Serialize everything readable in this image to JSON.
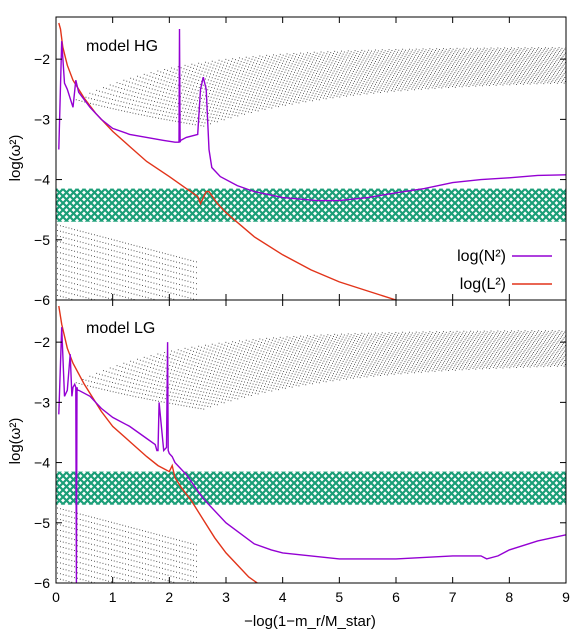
{
  "colors": {
    "n2": "#9400d3",
    "l2": "#e2341a",
    "band": "#1a9e77",
    "dots": "#4a4a4a"
  },
  "chart_data": [
    {
      "type": "line",
      "panel_label": "model HG",
      "xlim": [
        0,
        9
      ],
      "ylim": [
        -6,
        -1.3
      ],
      "y_ticks": [
        -6,
        -5,
        -4,
        -3,
        -2
      ],
      "xlabel": "",
      "ylabel": "log(ω²)",
      "legend_position": "right, middle",
      "band": [
        -4.7,
        -4.15
      ],
      "series": [
        {
          "name": "log(N²)",
          "x": [
            0.05,
            0.1,
            0.15,
            0.2,
            0.3,
            0.35,
            0.4,
            0.6,
            0.8,
            1.0,
            1.3,
            1.6,
            1.9,
            2.1,
            2.17,
            2.18,
            2.19,
            2.2,
            2.3,
            2.5,
            2.55,
            2.6,
            2.65,
            2.7,
            2.75,
            2.9,
            3.2,
            3.5,
            4.0,
            4.6,
            5.0,
            5.5,
            6.0,
            6.5,
            7.0,
            7.5,
            8.0,
            8.5,
            9.0
          ],
          "y": [
            -3.5,
            -1.7,
            -2.4,
            -2.5,
            -2.8,
            -2.35,
            -2.55,
            -2.8,
            -3.0,
            -3.15,
            -3.25,
            -3.3,
            -3.35,
            -3.38,
            -3.38,
            -1.5,
            -3.38,
            -3.35,
            -3.3,
            -3.25,
            -2.5,
            -2.3,
            -2.5,
            -3.5,
            -3.8,
            -3.95,
            -4.1,
            -4.2,
            -4.3,
            -4.35,
            -4.35,
            -4.3,
            -4.22,
            -4.15,
            -4.05,
            -4.0,
            -3.97,
            -3.93,
            -3.92
          ]
        },
        {
          "name": "log(L²)",
          "x": [
            0.05,
            0.08,
            0.12,
            0.2,
            0.3,
            0.5,
            0.7,
            1.0,
            1.3,
            1.6,
            2.0,
            2.3,
            2.5,
            2.55,
            2.65,
            2.7,
            2.85,
            3.0,
            3.5,
            4.0,
            4.5,
            5.0,
            5.5,
            6.0
          ],
          "y": [
            -1.4,
            -1.5,
            -1.8,
            -2.1,
            -2.35,
            -2.65,
            -2.9,
            -3.2,
            -3.45,
            -3.7,
            -3.95,
            -4.15,
            -4.28,
            -4.4,
            -4.2,
            -4.2,
            -4.4,
            -4.55,
            -4.95,
            -5.25,
            -5.5,
            -5.7,
            -5.85,
            -6.0
          ]
        }
      ]
    },
    {
      "type": "line",
      "panel_label": "model LG",
      "xlim": [
        0,
        9
      ],
      "ylim": [
        -6,
        -1.3
      ],
      "y_ticks": [
        -6,
        -5,
        -4,
        -3,
        -2
      ],
      "x_ticks": [
        0,
        1,
        2,
        3,
        4,
        5,
        6,
        7,
        8,
        9
      ],
      "xlabel": "−log(1−m_r/M_star)",
      "ylabel": "log(ω²)",
      "band": [
        -4.7,
        -4.15
      ],
      "series": [
        {
          "name": "log(N²)",
          "x": [
            0.05,
            0.1,
            0.15,
            0.2,
            0.25,
            0.28,
            0.3,
            0.33,
            0.35,
            0.36,
            0.37,
            0.38,
            0.4,
            0.6,
            0.8,
            1.0,
            1.3,
            1.6,
            1.75,
            1.78,
            1.8,
            1.82,
            1.9,
            1.95,
            1.97,
            1.98,
            2.0,
            2.05,
            2.1,
            2.3,
            2.6,
            3.0,
            3.5,
            3.8,
            4.0,
            4.5,
            5.0,
            6.0,
            7.0,
            7.5,
            7.6,
            7.8,
            8.0,
            8.5,
            9.0
          ],
          "y": [
            -3.2,
            -1.75,
            -2.9,
            -2.8,
            -2.2,
            -2.9,
            -2.75,
            -2.7,
            -2.75,
            -6.0,
            -2.75,
            -2.8,
            -2.8,
            -2.9,
            -3.1,
            -3.25,
            -3.4,
            -3.6,
            -3.7,
            -3.8,
            -3.8,
            -3.0,
            -3.8,
            -3.75,
            -2.0,
            -3.8,
            -3.85,
            -3.9,
            -4.0,
            -4.2,
            -4.6,
            -5.0,
            -5.35,
            -5.45,
            -5.5,
            -5.55,
            -5.6,
            -5.6,
            -5.55,
            -5.55,
            -5.6,
            -5.55,
            -5.45,
            -5.3,
            -5.2
          ]
        },
        {
          "name": "log(L²)",
          "x": [
            0.05,
            0.1,
            0.2,
            0.3,
            0.5,
            0.8,
            1.0,
            1.3,
            1.6,
            1.8,
            2.0,
            2.05,
            2.1,
            2.2,
            2.4,
            2.6,
            2.8,
            3.0,
            3.2,
            3.4,
            3.55
          ],
          "y": [
            -1.4,
            -1.7,
            -2.1,
            -2.35,
            -2.7,
            -3.15,
            -3.4,
            -3.65,
            -3.9,
            -4.05,
            -4.15,
            -4.05,
            -4.25,
            -4.4,
            -4.65,
            -4.95,
            -5.25,
            -5.5,
            -5.7,
            -5.9,
            -6.0
          ]
        }
      ]
    }
  ]
}
